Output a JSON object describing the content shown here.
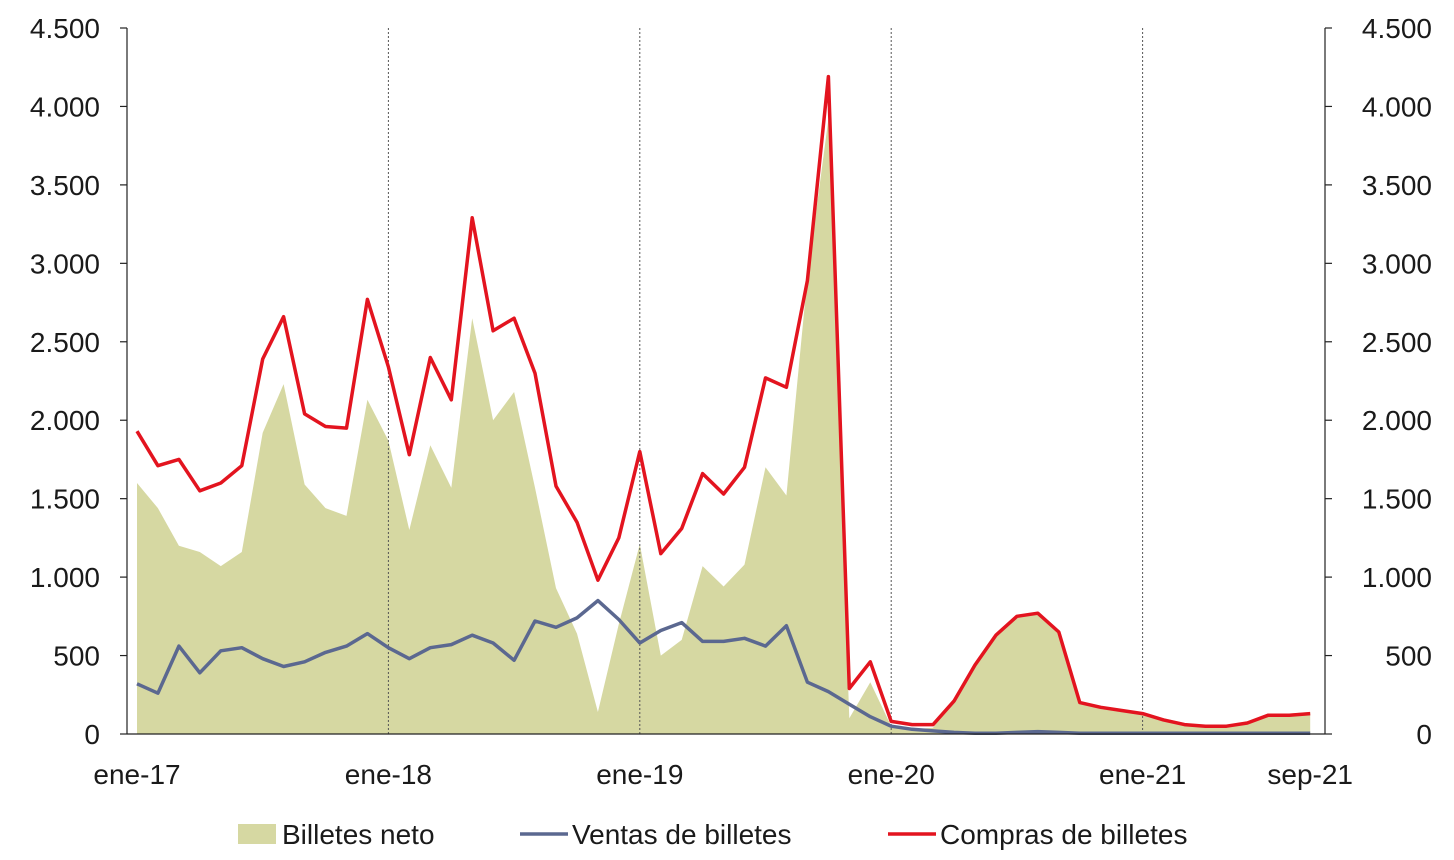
{
  "chart_data": {
    "type": "area",
    "title": "",
    "xlabel": "",
    "ylabel": "",
    "ylim": [
      0,
      4500
    ],
    "y_ticks": [
      0,
      500,
      1000,
      1500,
      2000,
      2500,
      3000,
      3500,
      4000,
      4500
    ],
    "y_tick_labels": [
      "0",
      "500",
      "1.000",
      "1.500",
      "2.000",
      "2.500",
      "3.000",
      "3.500",
      "4.000",
      "4.500"
    ],
    "secondary_axis": true,
    "x_tick_labels": [
      {
        "index": 0,
        "label": "ene-17"
      },
      {
        "index": 12,
        "label": "ene-18"
      },
      {
        "index": 24,
        "label": "ene-19"
      },
      {
        "index": 36,
        "label": "ene-20"
      },
      {
        "index": 48,
        "label": "ene-21"
      },
      {
        "index": 56,
        "label": "sep-21"
      }
    ],
    "year_dividers": [
      12,
      24,
      36,
      48
    ],
    "categories": [
      "ene-17",
      "feb-17",
      "mar-17",
      "abr-17",
      "may-17",
      "jun-17",
      "jul-17",
      "ago-17",
      "sep-17",
      "oct-17",
      "nov-17",
      "dic-17",
      "ene-18",
      "feb-18",
      "mar-18",
      "abr-18",
      "may-18",
      "jun-18",
      "jul-18",
      "ago-18",
      "sep-18",
      "oct-18",
      "nov-18",
      "dic-18",
      "ene-19",
      "feb-19",
      "mar-19",
      "abr-19",
      "may-19",
      "jun-19",
      "jul-19",
      "ago-19",
      "sep-19",
      "oct-19",
      "nov-19",
      "dic-19",
      "ene-20",
      "feb-20",
      "mar-20",
      "abr-20",
      "may-20",
      "jun-20",
      "jul-20",
      "ago-20",
      "sep-20",
      "oct-20",
      "nov-20",
      "dic-20",
      "ene-21",
      "feb-21",
      "mar-21",
      "abr-21",
      "may-21",
      "jun-21",
      "jul-21",
      "ago-21",
      "sep-21"
    ],
    "series": [
      {
        "name": "Billetes neto",
        "kind": "area",
        "color": "#d6d8a2",
        "values": [
          1600,
          1440,
          1200,
          1160,
          1070,
          1160,
          1920,
          2230,
          1590,
          1440,
          1390,
          2130,
          1870,
          1300,
          1840,
          1570,
          2650,
          2000,
          2180,
          1570,
          930,
          640,
          140,
          700,
          1210,
          500,
          600,
          1070,
          940,
          1080,
          1700,
          1520,
          2910,
          3920,
          100,
          330,
          50,
          30,
          40,
          220,
          440,
          640,
          750,
          760,
          640,
          200,
          160,
          140,
          130,
          100,
          70,
          50,
          50,
          70,
          120,
          130,
          140
        ]
      },
      {
        "name": "Ventas de billetes",
        "kind": "line",
        "color": "#5b6890",
        "values": [
          320,
          260,
          560,
          390,
          530,
          550,
          480,
          430,
          460,
          520,
          560,
          640,
          550,
          480,
          550,
          570,
          630,
          580,
          470,
          720,
          680,
          740,
          850,
          730,
          580,
          660,
          710,
          590,
          590,
          610,
          560,
          690,
          330,
          270,
          190,
          110,
          50,
          30,
          20,
          10,
          5,
          5,
          10,
          15,
          10,
          5,
          5,
          5,
          5,
          5,
          5,
          5,
          5,
          5,
          5,
          5,
          5
        ]
      },
      {
        "name": "Compras de billetes",
        "kind": "line",
        "color": "#e3141f",
        "values": [
          1930,
          1710,
          1750,
          1550,
          1600,
          1710,
          2390,
          2660,
          2040,
          1960,
          1950,
          2770,
          2340,
          1780,
          2400,
          2130,
          3290,
          2570,
          2650,
          2300,
          1580,
          1350,
          980,
          1250,
          1800,
          1150,
          1310,
          1660,
          1530,
          1700,
          2270,
          2210,
          2890,
          4190,
          290,
          460,
          80,
          60,
          60,
          210,
          440,
          630,
          750,
          770,
          650,
          200,
          170,
          150,
          130,
          90,
          60,
          50,
          50,
          70,
          120,
          120,
          130
        ]
      }
    ],
    "legend": {
      "placement": "bottom-center",
      "items": [
        "Billetes neto",
        "Ventas de billetes",
        "Compras de billetes"
      ]
    }
  }
}
